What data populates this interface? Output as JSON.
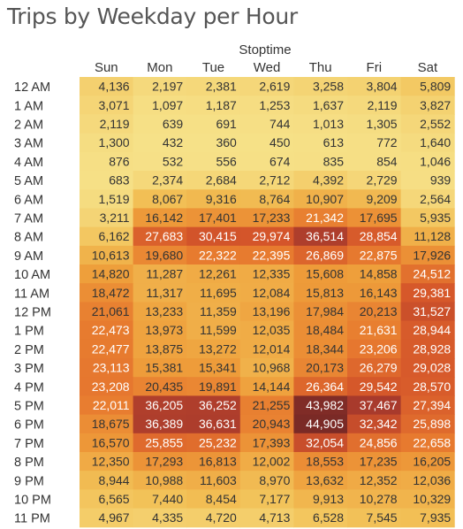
{
  "chart_data": {
    "type": "heatmap",
    "title": "Trips by Weekday per Hour",
    "column_header": "Stoptime",
    "columns": [
      "Sun",
      "Mon",
      "Tue",
      "Wed",
      "Thu",
      "Fri",
      "Sat"
    ],
    "rows": [
      "12 AM",
      "1 AM",
      "2 AM",
      "3 AM",
      "4 AM",
      "5 AM",
      "6 AM",
      "7 AM",
      "8 AM",
      "9 AM",
      "10 AM",
      "11 AM",
      "12 PM",
      "1 PM",
      "2 PM",
      "3 PM",
      "4 PM",
      "5 PM",
      "6 PM",
      "7 PM",
      "8 PM",
      "9 PM",
      "10 PM",
      "11 PM"
    ],
    "values": [
      [
        4136,
        2197,
        2381,
        2619,
        3258,
        3804,
        5809
      ],
      [
        3071,
        1097,
        1187,
        1253,
        1637,
        2119,
        3827
      ],
      [
        2119,
        639,
        691,
        744,
        1013,
        1305,
        2552
      ],
      [
        1300,
        432,
        360,
        450,
        613,
        772,
        1640
      ],
      [
        876,
        532,
        556,
        674,
        835,
        854,
        1046
      ],
      [
        683,
        2374,
        2684,
        2712,
        4392,
        2729,
        939
      ],
      [
        1519,
        8067,
        9316,
        8764,
        10907,
        9209,
        2564
      ],
      [
        3211,
        16142,
        17401,
        17233,
        21342,
        17695,
        5935
      ],
      [
        6162,
        27683,
        30415,
        29974,
        36514,
        28854,
        11128
      ],
      [
        10613,
        19680,
        22322,
        22395,
        26869,
        22875,
        17926
      ],
      [
        14820,
        11287,
        12261,
        12335,
        15608,
        14858,
        24512
      ],
      [
        18472,
        11317,
        11695,
        12084,
        15813,
        16143,
        29381
      ],
      [
        21061,
        13233,
        11359,
        13196,
        17984,
        20213,
        31527
      ],
      [
        22473,
        13973,
        11599,
        12035,
        18484,
        21631,
        28944
      ],
      [
        22477,
        13875,
        13272,
        12014,
        18344,
        23206,
        28928
      ],
      [
        23113,
        15381,
        15341,
        10968,
        20173,
        26279,
        29028
      ],
      [
        23208,
        20435,
        19891,
        14144,
        26364,
        29542,
        28570
      ],
      [
        22011,
        36205,
        36252,
        21255,
        43982,
        37467,
        27394
      ],
      [
        18675,
        36389,
        36631,
        20943,
        44905,
        32342,
        25898
      ],
      [
        16570,
        25855,
        25232,
        17393,
        32054,
        24856,
        22658
      ],
      [
        12350,
        17293,
        16813,
        12002,
        18553,
        17235,
        16205
      ],
      [
        8944,
        10988,
        11603,
        8970,
        13632,
        12352,
        12036
      ],
      [
        6565,
        7440,
        8454,
        7177,
        9913,
        10278,
        10329
      ],
      [
        4967,
        4335,
        4720,
        4713,
        6528,
        7545,
        7935
      ]
    ],
    "color_scale": [
      "#f6e188",
      "#f2c056",
      "#ee9d3a",
      "#e77a2f",
      "#d4552a",
      "#a83a2c",
      "#7a2a26"
    ],
    "label_color_dark": "#333333",
    "label_color_light": "#ffffff"
  }
}
